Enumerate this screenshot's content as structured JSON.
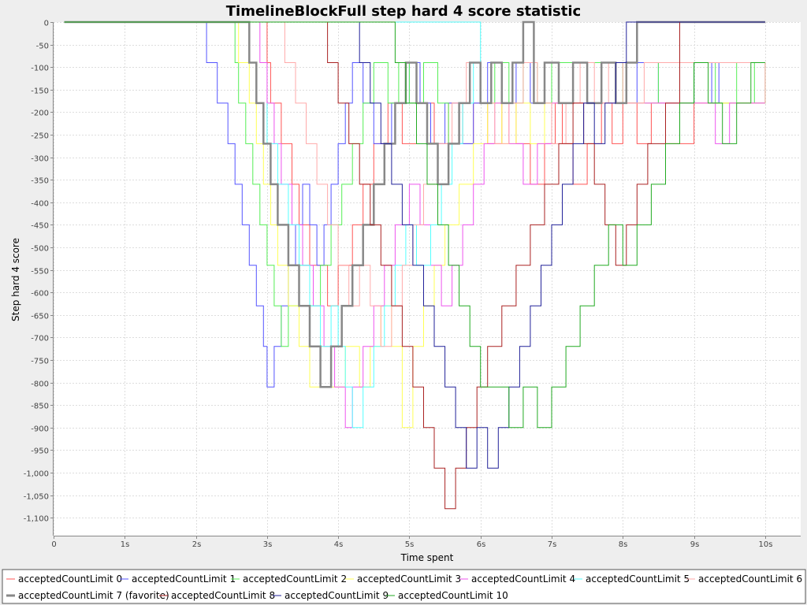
{
  "chart_data": {
    "type": "line",
    "title": "TimelineBlockFull step hard 4 score statistic",
    "xlabel": "Time spent",
    "ylabel": "Step hard 4 score",
    "xlim": [
      0,
      10.5
    ],
    "ylim": [
      -1140,
      0
    ],
    "x_ticks": [
      {
        "value": 0,
        "label": "0"
      },
      {
        "value": 1,
        "label": "1s"
      },
      {
        "value": 2,
        "label": "2s"
      },
      {
        "value": 3,
        "label": "3s"
      },
      {
        "value": 4,
        "label": "4s"
      },
      {
        "value": 5,
        "label": "5s"
      },
      {
        "value": 6,
        "label": "6s"
      },
      {
        "value": 7,
        "label": "7s"
      },
      {
        "value": 8,
        "label": "8s"
      },
      {
        "value": 9,
        "label": "9s"
      },
      {
        "value": 10,
        "label": "10s"
      }
    ],
    "y_ticks": [
      {
        "value": 0,
        "label": "0"
      },
      {
        "value": -50,
        "label": "-50"
      },
      {
        "value": -100,
        "label": "-100"
      },
      {
        "value": -150,
        "label": "-150"
      },
      {
        "value": -200,
        "label": "-200"
      },
      {
        "value": -250,
        "label": "-250"
      },
      {
        "value": -300,
        "label": "-300"
      },
      {
        "value": -350,
        "label": "-350"
      },
      {
        "value": -400,
        "label": "-400"
      },
      {
        "value": -450,
        "label": "-450"
      },
      {
        "value": -500,
        "label": "-500"
      },
      {
        "value": -550,
        "label": "-550"
      },
      {
        "value": -600,
        "label": "-600"
      },
      {
        "value": -650,
        "label": "-650"
      },
      {
        "value": -700,
        "label": "-700"
      },
      {
        "value": -750,
        "label": "-750"
      },
      {
        "value": -800,
        "label": "-800"
      },
      {
        "value": -850,
        "label": "-850"
      },
      {
        "value": -900,
        "label": "-900"
      },
      {
        "value": -950,
        "label": "-950"
      },
      {
        "value": -1000,
        "label": "-1,000"
      },
      {
        "value": -1050,
        "label": "-1,050"
      },
      {
        "value": -1100,
        "label": "-1,100"
      }
    ],
    "grid": true,
    "legend_position": "bottom",
    "series": [
      {
        "name": "acceptedCountLimit 0",
        "color": "#ff5555",
        "width": 1,
        "x": [
          0.15,
          3.0,
          3.05,
          3.2,
          3.35,
          3.45,
          3.6,
          3.85,
          4.0,
          4.2,
          4.35,
          4.5,
          4.7,
          4.9,
          5.1,
          5.35,
          5.55,
          5.75,
          5.9,
          6.1,
          6.3,
          6.5,
          6.7,
          6.9,
          7.05,
          7.15,
          7.3,
          7.5,
          7.7,
          7.85,
          8.0,
          8.2,
          8.4,
          8.6,
          9.0,
          10.0
        ],
        "y": [
          0,
          -90,
          -180,
          -270,
          -360,
          -450,
          -540,
          -630,
          -540,
          -450,
          -360,
          -270,
          -180,
          -270,
          -180,
          -270,
          -180,
          -270,
          -180,
          -270,
          -180,
          -270,
          -360,
          -270,
          -180,
          -270,
          -360,
          -270,
          -180,
          -270,
          -180,
          -270,
          -180,
          -270,
          -180,
          -180
        ]
      },
      {
        "name": "acceptedCountLimit 1",
        "color": "#5555ff",
        "width": 1,
        "x": [
          0.15,
          2.15,
          2.3,
          2.45,
          2.55,
          2.65,
          2.75,
          2.85,
          2.95,
          3.0,
          3.1,
          3.2,
          3.3,
          3.4,
          3.5,
          3.6,
          3.7,
          3.8,
          3.9,
          4.0,
          4.1,
          4.2,
          4.35,
          4.5,
          4.75,
          5.0,
          5.15,
          5.3,
          5.5,
          5.7,
          5.9,
          6.1,
          6.3,
          6.5,
          6.7,
          7.0,
          7.3,
          7.6,
          7.9,
          8.2,
          8.5,
          9.0,
          9.25,
          9.35,
          10.0
        ],
        "y": [
          0,
          -90,
          -180,
          -270,
          -360,
          -450,
          -540,
          -630,
          -720,
          -810,
          -720,
          -630,
          -540,
          -450,
          -360,
          -450,
          -540,
          -450,
          -360,
          -270,
          -180,
          -90,
          -180,
          -270,
          -180,
          -90,
          -180,
          -270,
          -180,
          -270,
          -180,
          -90,
          -180,
          -90,
          -180,
          -90,
          -90,
          -90,
          -180,
          -90,
          -180,
          -90,
          -180,
          -90,
          -90
        ]
      },
      {
        "name": "acceptedCountLimit 2",
        "color": "#55ee55",
        "width": 1,
        "x": [
          0.15,
          2.55,
          2.6,
          2.7,
          2.8,
          2.9,
          3.0,
          3.1,
          3.2,
          3.3,
          3.45,
          3.6,
          3.75,
          3.9,
          4.05,
          4.2,
          4.35,
          4.5,
          4.7,
          4.85,
          5.0,
          5.2,
          5.4,
          5.55,
          5.7,
          5.85,
          6.0,
          6.2,
          6.4,
          6.6,
          6.8,
          7.0,
          7.5,
          8.0,
          8.5,
          8.8,
          9.0,
          9.3,
          9.6,
          9.85,
          10.0
        ],
        "y": [
          0,
          -90,
          -180,
          -270,
          -360,
          -450,
          -540,
          -630,
          -720,
          -630,
          -540,
          -630,
          -540,
          -450,
          -360,
          -270,
          -180,
          -90,
          -180,
          -90,
          -180,
          -90,
          -180,
          -270,
          -180,
          -90,
          -180,
          -90,
          -180,
          -90,
          -180,
          -90,
          -90,
          -180,
          -90,
          -180,
          -90,
          -180,
          -90,
          -180,
          -90
        ]
      },
      {
        "name": "acceptedCountLimit 3",
        "color": "#ffff55",
        "width": 1,
        "x": [
          0.15,
          2.6,
          2.75,
          2.85,
          2.95,
          3.05,
          3.15,
          3.3,
          3.45,
          3.6,
          3.75,
          3.9,
          4.1,
          4.3,
          4.45,
          4.6,
          4.75,
          4.9,
          5.05,
          5.2,
          5.35,
          5.5,
          5.7,
          5.9,
          6.1,
          6.3,
          6.5,
          6.7,
          6.9,
          7.2,
          7.6,
          8.0,
          10.0
        ],
        "y": [
          0,
          -90,
          -180,
          -270,
          -360,
          -450,
          -540,
          -630,
          -720,
          -810,
          -720,
          -810,
          -720,
          -810,
          -720,
          -630,
          -720,
          -900,
          -720,
          -630,
          -540,
          -450,
          -360,
          -270,
          -180,
          -270,
          -180,
          -270,
          -180,
          -180,
          -180,
          -180,
          -180
        ]
      },
      {
        "name": "acceptedCountLimit 4",
        "color": "#ee55ee",
        "width": 1,
        "x": [
          0.15,
          2.9,
          3.0,
          3.1,
          3.2,
          3.35,
          3.5,
          3.65,
          3.8,
          3.95,
          4.1,
          4.2,
          4.35,
          4.5,
          4.65,
          4.8,
          5.0,
          5.15,
          5.3,
          5.45,
          5.6,
          5.75,
          5.9,
          6.05,
          6.2,
          6.4,
          6.6,
          6.8,
          7.0,
          7.3,
          7.6,
          8.0,
          8.5,
          9.0,
          9.3,
          9.5,
          10.0
        ],
        "y": [
          0,
          -90,
          -180,
          -270,
          -360,
          -450,
          -540,
          -630,
          -720,
          -810,
          -900,
          -810,
          -720,
          -630,
          -540,
          -450,
          -360,
          -450,
          -540,
          -630,
          -540,
          -450,
          -360,
          -270,
          -180,
          -270,
          -360,
          -270,
          -180,
          -180,
          -180,
          -180,
          -180,
          -180,
          -270,
          -180,
          -180
        ]
      },
      {
        "name": "acceptedCountLimit 5",
        "color": "#55ffff",
        "width": 1,
        "x": [
          0.15,
          6.0,
          5.9,
          5.75,
          5.6,
          5.45,
          5.3,
          5.1,
          4.95,
          4.8,
          4.65,
          4.5,
          4.35,
          4.2,
          4.1,
          4.0,
          3.9,
          3.75,
          3.6,
          3.45,
          3.3,
          3.15,
          3.0,
          3.0
        ],
        "y": [
          0,
          -90,
          -180,
          -270,
          -360,
          -450,
          -540,
          -450,
          -540,
          -630,
          -720,
          -810,
          -900,
          -810,
          -720,
          -630,
          -720,
          -630,
          -540,
          -450,
          -360,
          -270,
          -180,
          -180
        ]
      },
      {
        "name": "acceptedCountLimit 6",
        "color": "#ffaaaa",
        "width": 1,
        "x": [
          0.15,
          3.25,
          3.4,
          3.55,
          3.7,
          3.85,
          4.0,
          4.15,
          4.3,
          4.45,
          4.6,
          4.75,
          4.9,
          5.05,
          5.2,
          5.4,
          5.6,
          5.8,
          6.0,
          6.2,
          6.4,
          6.6,
          6.8,
          7.0,
          7.2,
          7.4,
          7.6,
          7.8,
          8.0,
          8.3,
          10.0
        ],
        "y": [
          0,
          -90,
          -180,
          -270,
          -360,
          -450,
          -540,
          -630,
          -540,
          -630,
          -720,
          -630,
          -540,
          -450,
          -360,
          -270,
          -180,
          -90,
          -180,
          -270,
          -180,
          -90,
          -180,
          -270,
          -180,
          -90,
          -180,
          -90,
          -180,
          -90,
          -180
        ]
      },
      {
        "name": "acceptedCountLimit 7 (favorite)",
        "color": "#888888",
        "width": 2.5,
        "x": [
          0.15,
          2.75,
          2.85,
          2.95,
          3.05,
          3.15,
          3.3,
          3.45,
          3.6,
          3.75,
          3.9,
          4.05,
          4.2,
          4.35,
          4.5,
          4.65,
          4.8,
          4.95,
          5.1,
          5.25,
          5.4,
          5.55,
          5.7,
          5.85,
          6.0,
          6.15,
          6.3,
          6.45,
          6.6,
          6.75,
          6.9,
          7.1,
          7.3,
          7.5,
          7.7,
          7.9,
          8.05,
          8.2,
          10.0
        ],
        "y": [
          0,
          -90,
          -180,
          -270,
          -360,
          -450,
          -540,
          -630,
          -720,
          -810,
          -720,
          -630,
          -540,
          -450,
          -360,
          -270,
          -180,
          -90,
          -180,
          -270,
          -360,
          -270,
          -180,
          -90,
          -180,
          -90,
          -180,
          -90,
          0,
          -180,
          -90,
          -180,
          -90,
          -180,
          -90,
          -180,
          -90,
          0,
          0
        ]
      },
      {
        "name": "acceptedCountLimit 8",
        "color": "#aa2222",
        "width": 1,
        "x": [
          0.15,
          3.85,
          4.0,
          4.15,
          4.3,
          4.45,
          4.6,
          4.75,
          4.9,
          5.05,
          5.2,
          5.35,
          5.5,
          5.65,
          5.8,
          5.95,
          6.1,
          6.3,
          6.5,
          6.7,
          6.9,
          7.1,
          7.3,
          7.45,
          7.6,
          7.75,
          7.9,
          8.05,
          8.2,
          8.35,
          8.6,
          8.8,
          10.0
        ],
        "y": [
          0,
          -90,
          -180,
          -270,
          -360,
          -450,
          -540,
          -630,
          -720,
          -810,
          -900,
          -990,
          -1080,
          -990,
          -900,
          -810,
          -720,
          -630,
          -540,
          -450,
          -360,
          -270,
          -180,
          -270,
          -360,
          -450,
          -540,
          -450,
          -360,
          -270,
          -180,
          0,
          0
        ]
      },
      {
        "name": "acceptedCountLimit 9",
        "color": "#222299",
        "width": 1,
        "x": [
          0.15,
          4.3,
          4.45,
          4.6,
          4.75,
          4.9,
          5.05,
          5.2,
          5.35,
          5.5,
          5.65,
          5.8,
          5.95,
          6.1,
          6.25,
          6.4,
          6.55,
          6.7,
          6.85,
          7.0,
          7.15,
          7.3,
          7.45,
          7.6,
          7.75,
          7.9,
          8.05,
          8.2,
          10.0
        ],
        "y": [
          0,
          -90,
          -180,
          -270,
          -360,
          -450,
          -540,
          -630,
          -720,
          -810,
          -900,
          -990,
          -900,
          -990,
          -900,
          -810,
          -720,
          -630,
          -540,
          -450,
          -360,
          -270,
          -180,
          -270,
          -180,
          -90,
          0,
          0,
          0
        ]
      },
      {
        "name": "acceptedCountLimit 10",
        "color": "#22aa22",
        "width": 1,
        "x": [
          0.15,
          4.8,
          4.95,
          5.1,
          5.25,
          5.4,
          5.55,
          5.7,
          5.85,
          6.0,
          6.2,
          6.4,
          6.6,
          6.8,
          7.0,
          7.2,
          7.4,
          7.6,
          7.8,
          8.0,
          8.2,
          8.4,
          8.6,
          8.8,
          9.0,
          9.2,
          9.4,
          9.6,
          9.8,
          10.0
        ],
        "y": [
          0,
          -90,
          -180,
          -270,
          -360,
          -450,
          -540,
          -630,
          -720,
          -810,
          -810,
          -900,
          -810,
          -900,
          -810,
          -720,
          -630,
          -540,
          -450,
          -540,
          -450,
          -360,
          -270,
          -180,
          -90,
          -180,
          -270,
          -180,
          -90,
          -90
        ]
      }
    ]
  }
}
